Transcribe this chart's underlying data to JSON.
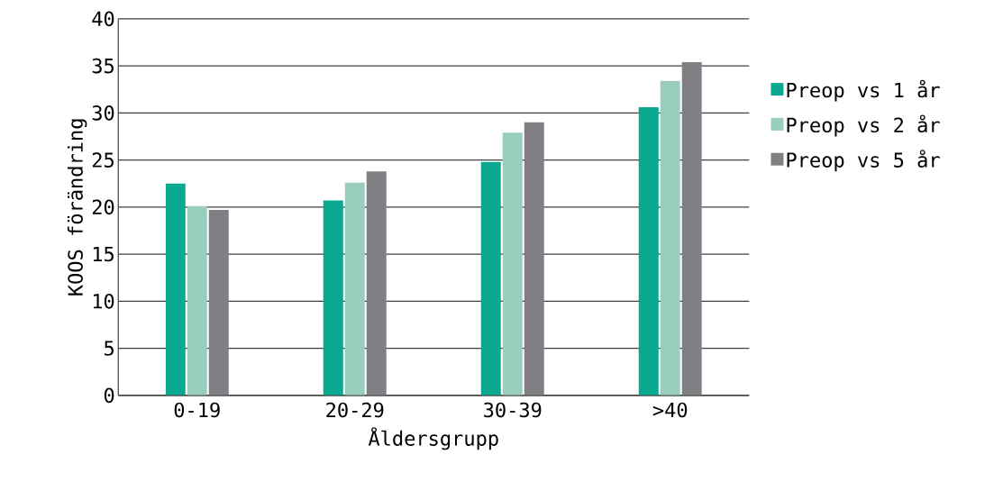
{
  "chart_data": {
    "type": "bar",
    "xlabel": "Åldersgrupp",
    "ylabel": "KOOS förändring",
    "categories": [
      "0-19",
      "20-29",
      "30-39",
      ">40"
    ],
    "series": [
      {
        "name": "Preop vs 1 år",
        "color": "#0aa88f",
        "values": [
          22.5,
          20.7,
          24.8,
          30.6
        ]
      },
      {
        "name": "Preop vs 2 år",
        "color": "#99cdbe",
        "values": [
          20.1,
          22.6,
          27.9,
          33.4
        ]
      },
      {
        "name": "Preop vs 5 år",
        "color": "#808084",
        "values": [
          19.7,
          23.8,
          29.0,
          35.4
        ]
      }
    ],
    "ylim": [
      0,
      40
    ],
    "yticks": [
      0,
      5,
      10,
      15,
      20,
      25,
      30,
      35,
      40
    ],
    "grid": "y",
    "legend": "right"
  }
}
